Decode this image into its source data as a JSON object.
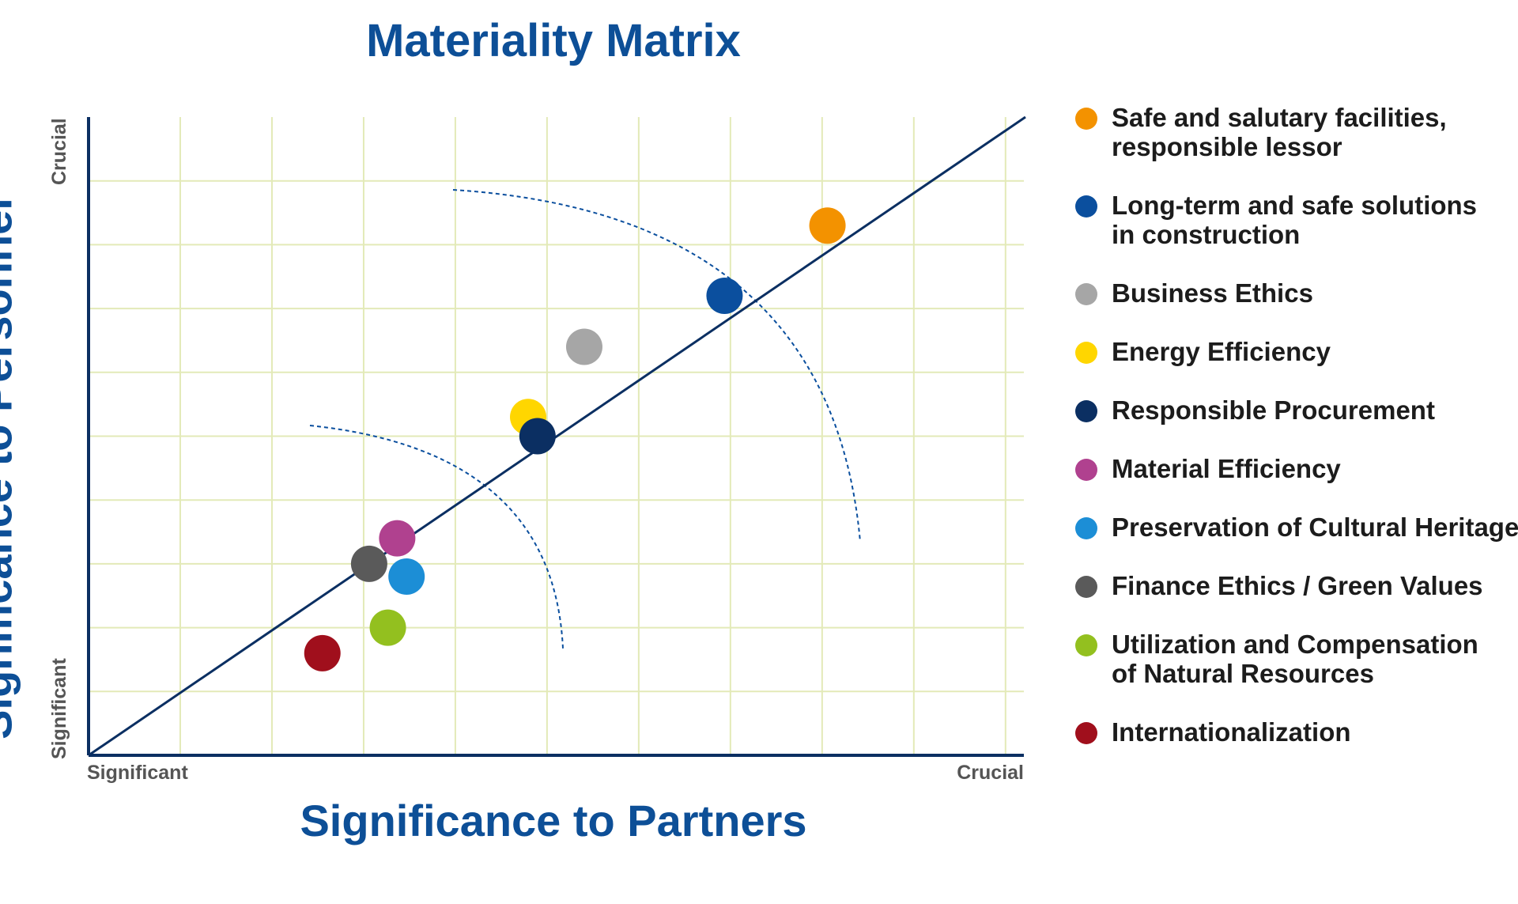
{
  "chart_data": {
    "type": "scatter",
    "title": "Materiality Matrix",
    "xlabel": "Significance to Partners",
    "ylabel": "Significance to Personnel",
    "x_tick_labels": [
      "Significant",
      "Crucial"
    ],
    "y_tick_labels": [
      "Significant",
      "Crucial"
    ],
    "xlim": [
      0,
      10
    ],
    "ylim": [
      0,
      10
    ],
    "grid": true,
    "diagonal_line": true,
    "legend_position": "right",
    "series": [
      {
        "name": "Safe and salutary facilities, responsible lessor",
        "color": "#f39200",
        "x": 7.9,
        "y": 8.3
      },
      {
        "name": "Long-term and safe solutions in construction",
        "color": "#0b4f9e",
        "x": 6.8,
        "y": 7.2
      },
      {
        "name": "Business Ethics",
        "color": "#a6a6a6",
        "x": 5.3,
        "y": 6.4
      },
      {
        "name": "Energy Efficiency",
        "color": "#ffd600",
        "x": 4.7,
        "y": 5.3
      },
      {
        "name": "Responsible Procurement",
        "color": "#0b2f62",
        "x": 4.8,
        "y": 5.0
      },
      {
        "name": "Material Efficiency",
        "color": "#b0418f",
        "x": 3.3,
        "y": 3.4
      },
      {
        "name": "Preservation of Cultural Heritage",
        "color": "#1c8ed6",
        "x": 3.4,
        "y": 2.8
      },
      {
        "name": "Finance Ethics / Green Values",
        "color": "#5a5a5a",
        "x": 3.0,
        "y": 3.0
      },
      {
        "name": "Utilization and Compensation of Natural Resources",
        "color": "#93c01f",
        "x": 3.2,
        "y": 2.0
      },
      {
        "name": "Internationalization",
        "color": "#a00f1c",
        "x": 2.5,
        "y": 1.6
      }
    ]
  },
  "legend": [
    {
      "lines": [
        "Safe and salutary facilities,",
        "responsible lessor"
      ],
      "color": "#f39200"
    },
    {
      "lines": [
        "Long-term and safe solutions",
        "in construction"
      ],
      "color": "#0b4f9e"
    },
    {
      "lines": [
        "Business Ethics"
      ],
      "color": "#a6a6a6"
    },
    {
      "lines": [
        "Energy Efficiency"
      ],
      "color": "#ffd600"
    },
    {
      "lines": [
        "Responsible Procurement"
      ],
      "color": "#0b2f62"
    },
    {
      "lines": [
        "Material Efficiency"
      ],
      "color": "#b0418f"
    },
    {
      "lines": [
        "Preservation of Cultural Heritage"
      ],
      "color": "#1c8ed6"
    },
    {
      "lines": [
        "Finance Ethics / Green Values"
      ],
      "color": "#5a5a5a"
    },
    {
      "lines": [
        "Utilization and Compensation",
        "of Natural Resources"
      ],
      "color": "#93c01f"
    },
    {
      "lines": [
        "Internationalization"
      ],
      "color": "#a00f1c"
    }
  ],
  "colors": {
    "title": "#0d4f97",
    "axis": "#0b2f62",
    "grid": "#e3eab8"
  }
}
